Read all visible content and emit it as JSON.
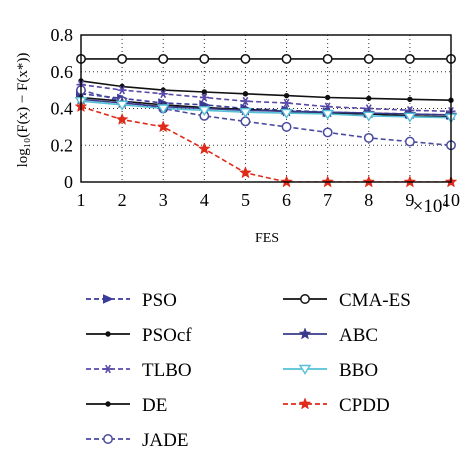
{
  "chart_data": {
    "type": "line",
    "xlabel": "FES",
    "x_multiplier": "×10⁴",
    "ylabel": "log₁₀(F(x) − F(x*))",
    "x": [
      1,
      2,
      3,
      4,
      5,
      6,
      7,
      8,
      9,
      10
    ],
    "xlim": [
      1,
      10
    ],
    "ylim": [
      0,
      0.8
    ],
    "yticks": [
      0,
      0.2,
      0.4,
      0.6,
      0.8
    ],
    "grid": true,
    "legend_position": "below plot, two columns",
    "series": [
      {
        "name": "PSO",
        "color": "#3b3b9a",
        "dash": "dashed",
        "marker": "arrow",
        "values": [
          0.48,
          0.455,
          0.43,
          0.42,
          0.4,
          0.39,
          0.38,
          0.375,
          0.37,
          0.365
        ]
      },
      {
        "name": "PSOcf",
        "color": "#111111",
        "dash": "solid",
        "marker": "dot",
        "values": [
          0.55,
          0.52,
          0.5,
          0.49,
          0.48,
          0.47,
          0.46,
          0.455,
          0.45,
          0.445
        ]
      },
      {
        "name": "TLBO",
        "color": "#5a4aa8",
        "dash": "dashed",
        "marker": "asterisk",
        "values": [
          0.53,
          0.5,
          0.48,
          0.46,
          0.44,
          0.43,
          0.41,
          0.4,
          0.39,
          0.385
        ]
      },
      {
        "name": "DE",
        "color": "#111111",
        "dash": "solid",
        "marker": "dot",
        "values": [
          0.46,
          0.44,
          0.42,
          0.405,
          0.395,
          0.385,
          0.375,
          0.37,
          0.36,
          0.355
        ]
      },
      {
        "name": "JADE",
        "color": "#4a4aa0",
        "dash": "dashed",
        "marker": "circle",
        "values": [
          0.5,
          0.44,
          0.4,
          0.36,
          0.33,
          0.3,
          0.27,
          0.24,
          0.22,
          0.2
        ]
      },
      {
        "name": "CMA-ES",
        "color": "#111111",
        "dash": "solid",
        "marker": "circle",
        "values": [
          0.67,
          0.67,
          0.67,
          0.67,
          0.67,
          0.67,
          0.67,
          0.67,
          0.67,
          0.67
        ]
      },
      {
        "name": "ABC",
        "color": "#3a3a8a",
        "dash": "solid",
        "marker": "star",
        "values": [
          0.45,
          0.43,
          0.41,
          0.4,
          0.39,
          0.385,
          0.38,
          0.375,
          0.37,
          0.365
        ]
      },
      {
        "name": "BBO",
        "color": "#55c0d8",
        "dash": "solid",
        "marker": "triangle-down",
        "values": [
          0.44,
          0.42,
          0.4,
          0.39,
          0.38,
          0.375,
          0.37,
          0.36,
          0.355,
          0.35
        ]
      },
      {
        "name": "CPDD",
        "color": "#e02a1a",
        "dash": "dashed",
        "marker": "star",
        "values": [
          0.41,
          0.34,
          0.3,
          0.18,
          0.05,
          0.0,
          0.0,
          0.0,
          0.0,
          0.0
        ]
      }
    ]
  }
}
